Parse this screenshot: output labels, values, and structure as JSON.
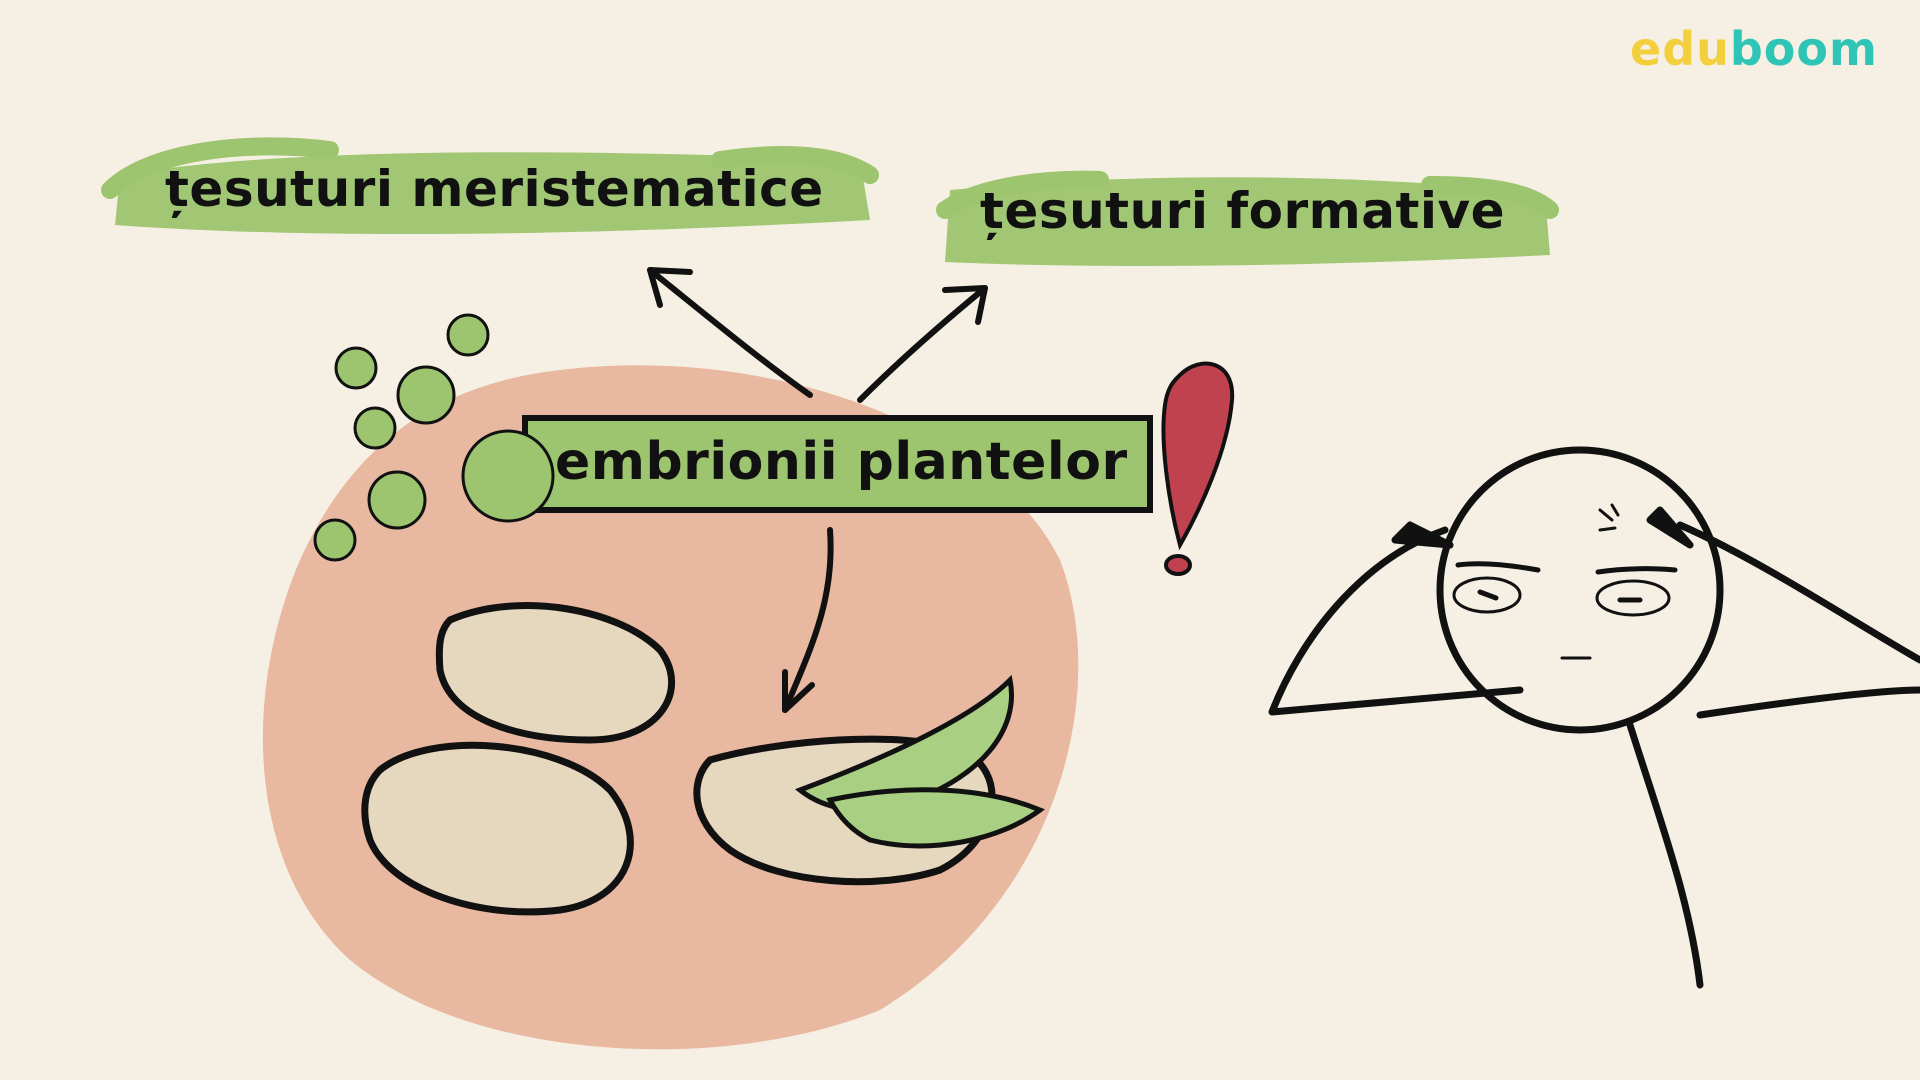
{
  "brand": {
    "part1": "edu",
    "part2": "boom",
    "color_part1": "#f3cf3d",
    "color_part2": "#2ec4b6"
  },
  "labels": {
    "meristematic": "țesuturi meristematice",
    "formative": "țesuturi formative",
    "embryos": "embrionii plantelor"
  },
  "colors": {
    "background": "#f6f0e4",
    "highlight_green": "#9dc46e",
    "circle_blob": "#e8b9a0",
    "seed": "#e6d8bf",
    "leaf": "#a8cf82",
    "exclamation": "#c0424f"
  },
  "icons": [
    "seed-icon",
    "leaf-icon",
    "exclamation-icon",
    "stick-figure-icon",
    "green-dot-icon",
    "arrow-icon"
  ]
}
